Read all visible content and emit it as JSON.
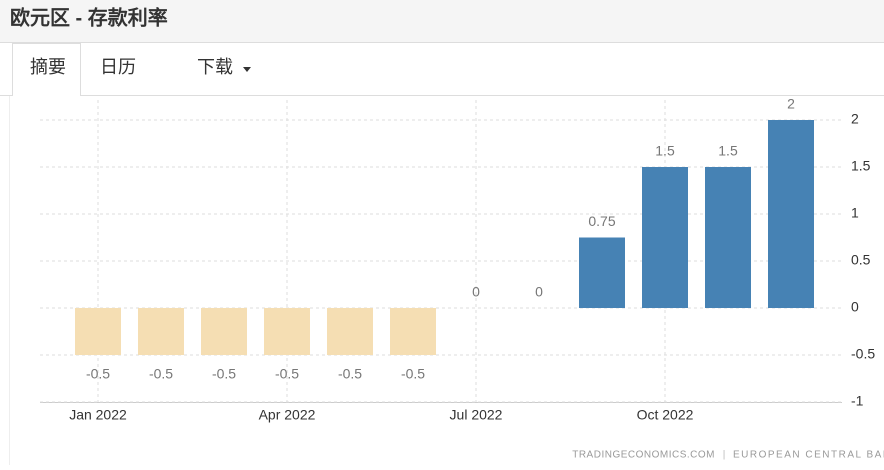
{
  "header": {
    "title": "欧元区 - 存款利率"
  },
  "tabs": [
    "摘要",
    "日历",
    "下载"
  ],
  "chart_data": {
    "type": "bar",
    "categories": [
      "Jan 2022",
      null,
      null,
      "Apr 2022",
      null,
      null,
      "Jul 2022",
      null,
      null,
      "Oct 2022",
      null,
      null
    ],
    "values": [
      -0.5,
      -0.5,
      -0.5,
      -0.5,
      -0.5,
      -0.5,
      0,
      0,
      0.75,
      1.5,
      1.5,
      2
    ],
    "color": "#4682b4",
    "negative_color": "#f5deb3",
    "ylim": [
      -1,
      2
    ],
    "yticks": [
      -1,
      -0.5,
      0,
      0.5,
      1,
      1.5,
      2
    ],
    "grid": true,
    "source": [
      "TRADINGECONOMICS.COM",
      "EUROPEAN CENTRAL BANK"
    ]
  }
}
